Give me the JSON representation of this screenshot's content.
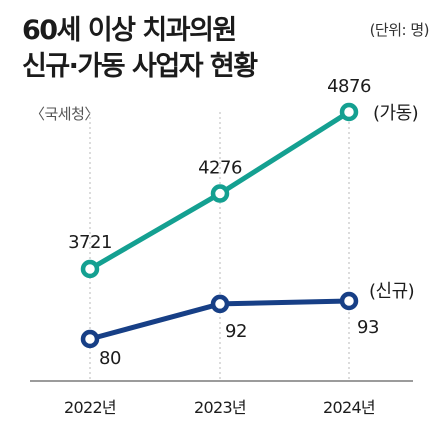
{
  "header": {
    "title_line1": "60세 이상 치과의원",
    "title_line2": "신규·가동 사업자 현황",
    "unit": "(단위: 명)",
    "source": "〈국세청〉"
  },
  "chart_data": {
    "type": "line",
    "title": "60세 이상 치과의원 신규·가동 사업자 현황",
    "unit": "(단위: 명)",
    "source": "〈국세청〉",
    "categories": [
      "2022년",
      "2023년",
      "2024년"
    ],
    "series": [
      {
        "name": "(가동)",
        "values": [
          3721,
          4276,
          4876
        ],
        "color": "#14a091"
      },
      {
        "name": "(신규)",
        "values": [
          80,
          92,
          93
        ],
        "color": "#173f86"
      }
    ],
    "grid": false,
    "legend": "right-of-last-point"
  }
}
